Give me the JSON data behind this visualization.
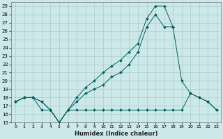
{
  "xlabel": "Humidex (Indice chaleur)",
  "background_color": "#cce8e8",
  "grid_color": "#aacccc",
  "line_color": "#006060",
  "ylim": [
    15,
    29.5
  ],
  "xlim": [
    -0.5,
    23.5
  ],
  "yticks": [
    15,
    16,
    17,
    18,
    19,
    20,
    21,
    22,
    23,
    24,
    25,
    26,
    27,
    28,
    29
  ],
  "xticks": [
    0,
    1,
    2,
    3,
    4,
    5,
    6,
    7,
    8,
    9,
    10,
    11,
    12,
    13,
    14,
    15,
    16,
    17,
    18,
    19,
    20,
    21,
    22,
    23
  ],
  "curve_upper_x": [
    0,
    1,
    2,
    3,
    4,
    5,
    6,
    7,
    8,
    9,
    10,
    11,
    12,
    13,
    14,
    15,
    16,
    17,
    18
  ],
  "curve_upper_y": [
    17.5,
    18.0,
    18.0,
    17.5,
    16.5,
    15.0,
    16.5,
    18.0,
    19.2,
    20.0,
    21.0,
    21.8,
    22.5,
    23.5,
    24.5,
    27.5,
    29.0,
    29.0,
    26.5
  ],
  "curve_mid_x": [
    0,
    1,
    2,
    3,
    4,
    5,
    6,
    7,
    8,
    9,
    10,
    11,
    12,
    13,
    14,
    15,
    16,
    17,
    18,
    19,
    20,
    21,
    22,
    23
  ],
  "curve_mid_y": [
    17.5,
    18.0,
    18.0,
    17.5,
    16.5,
    15.0,
    16.5,
    17.5,
    18.5,
    19.0,
    19.5,
    20.5,
    21.0,
    22.0,
    23.5,
    26.5,
    28.0,
    26.5,
    26.5,
    20.0,
    18.5,
    18.0,
    17.5,
    16.5
  ],
  "curve_lower_x": [
    0,
    1,
    2,
    3,
    4,
    5,
    6,
    7,
    8,
    9,
    10,
    11,
    12,
    13,
    14,
    15,
    16,
    17,
    18,
    19,
    20,
    21,
    22,
    23
  ],
  "curve_lower_y": [
    17.5,
    18.0,
    18.0,
    16.5,
    16.5,
    15.0,
    16.5,
    16.5,
    16.5,
    16.5,
    16.5,
    16.5,
    16.5,
    16.5,
    16.5,
    16.5,
    16.5,
    16.5,
    16.5,
    16.5,
    18.5,
    18.0,
    17.5,
    16.5
  ]
}
